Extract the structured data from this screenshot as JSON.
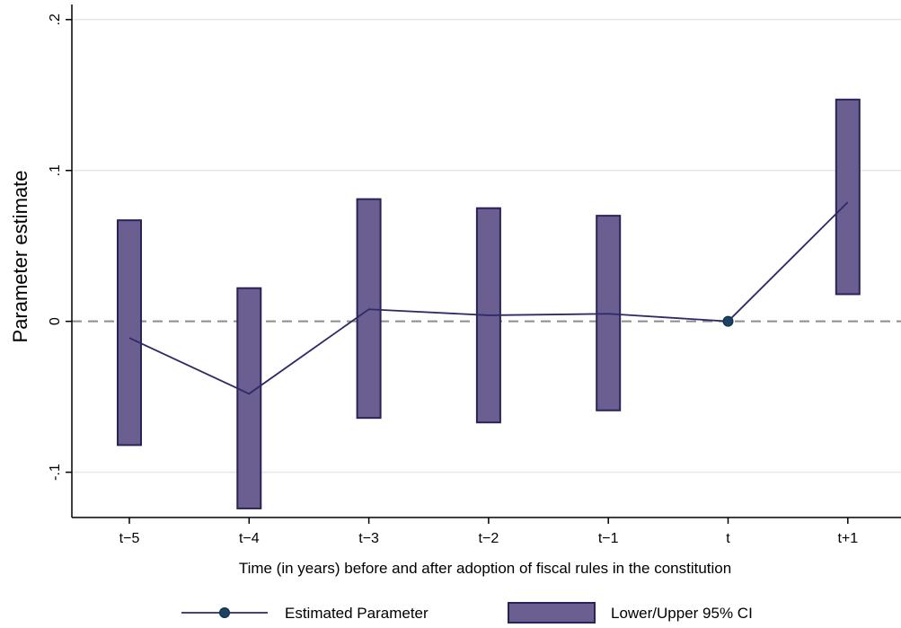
{
  "chart_data": {
    "type": "line",
    "title": "",
    "xlabel": "Time (in years) before and after adoption of fiscal rules in the constitution",
    "ylabel": "Parameter estimate",
    "categories": [
      "t−5",
      "t−4",
      "t−3",
      "t−2",
      "t−1",
      "t",
      "t+1"
    ],
    "ylim": [
      -0.13,
      0.21
    ],
    "yticks": [
      {
        "value": 0.2,
        "label": ".2"
      },
      {
        "value": 0.1,
        "label": ".1"
      },
      {
        "value": 0,
        "label": "0"
      },
      {
        "value": -0.1,
        "label": "-.1"
      }
    ],
    "grid": true,
    "reference_line": 0,
    "series": [
      {
        "name": "Estimated Parameter",
        "kind": "line",
        "values": [
          -0.011,
          -0.048,
          0.008,
          0.004,
          0.005,
          0.0,
          0.079
        ],
        "markers": [
          "t"
        ]
      },
      {
        "name": "Lower/Upper 95% CI",
        "kind": "range-bar",
        "lower": [
          -0.082,
          -0.124,
          -0.064,
          -0.067,
          -0.059,
          null,
          0.018
        ],
        "upper": [
          0.067,
          0.022,
          0.081,
          0.075,
          0.07,
          null,
          0.147
        ]
      }
    ],
    "legend_position": "bottom",
    "colors": {
      "line": "#2e2a66",
      "marker": "#1c4163",
      "bar_fill": "#6b5f91",
      "bar_stroke": "#2b2358",
      "grid": "#e1e9ec",
      "reference": "#8c8c8c",
      "axis": "#000000"
    }
  }
}
